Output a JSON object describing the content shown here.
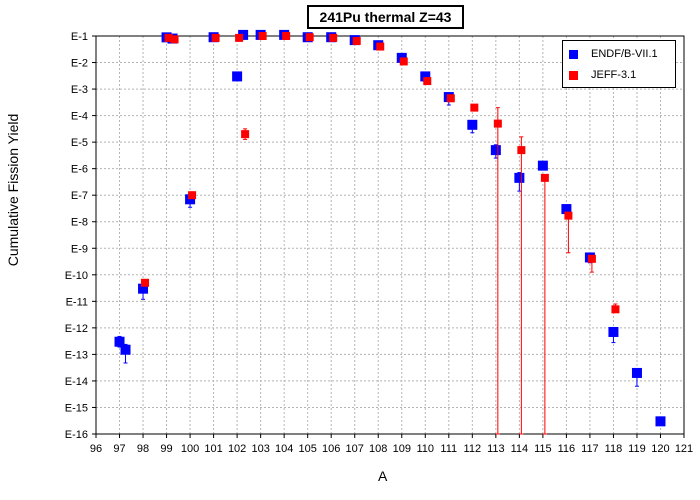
{
  "chart_data": {
    "type": "scatter",
    "title": "241Pu thermal Z=43",
    "xlabel": "A",
    "ylabel": "Cumulative Fission Yield",
    "xlim": [
      96,
      121
    ],
    "ylim_log10": [
      -16,
      -1
    ],
    "y_scale": "log",
    "x_ticks": [
      "96",
      "97",
      "98",
      "99",
      "100",
      "101",
      "102",
      "103",
      "104",
      "105",
      "106",
      "107",
      "108",
      "109",
      "110",
      "111",
      "112",
      "113",
      "114",
      "115",
      "116",
      "117",
      "118",
      "119",
      "120",
      "121"
    ],
    "y_ticks": [
      "E-1",
      "E-2",
      "E-3",
      "E-4",
      "E-5",
      "E-6",
      "E-7",
      "E-8",
      "E-9",
      "E-10",
      "E-11",
      "E-12",
      "E-13",
      "E-14",
      "E-15",
      "E-16"
    ],
    "legend_position": "top-right",
    "series": [
      {
        "name": "ENDF/B-VII.1",
        "color": "#0000ff",
        "points": [
          {
            "x": 97,
            "y": "3.0E-13",
            "err": [
              0.2,
              0.2
            ]
          },
          {
            "x": 97,
            "y": "1.5E-13",
            "err": [
              0.5,
              0.2
            ]
          },
          {
            "x": 98,
            "y": "3.0E-11",
            "err": [
              0.4,
              0.2
            ]
          },
          {
            "x": 99,
            "y": "8.9E-2",
            "err": [
              0,
              0
            ]
          },
          {
            "x": 99,
            "y": "8.0E-2",
            "err": [
              0,
              0
            ]
          },
          {
            "x": 100,
            "y": "7.0E-8",
            "err": [
              0.3,
              0.2
            ]
          },
          {
            "x": 101,
            "y": "9.0E-2",
            "err": [
              0,
              0
            ]
          },
          {
            "x": 102,
            "y": "3.0E-3",
            "err": [
              0,
              0
            ]
          },
          {
            "x": 102,
            "y": "1.1E-1",
            "err": [
              0,
              0
            ]
          },
          {
            "x": 103,
            "y": "1.1E-1",
            "err": [
              0,
              0
            ]
          },
          {
            "x": 104,
            "y": "1.1E-1",
            "err": [
              0,
              0
            ]
          },
          {
            "x": 105,
            "y": "9.0E-2",
            "err": [
              0,
              0
            ]
          },
          {
            "x": 106,
            "y": "9.0E-2",
            "err": [
              0,
              0
            ]
          },
          {
            "x": 107,
            "y": "7.0E-2",
            "err": [
              0,
              0
            ]
          },
          {
            "x": 108,
            "y": "4.5E-2",
            "err": [
              0,
              0
            ]
          },
          {
            "x": 109,
            "y": "1.5E-2",
            "err": [
              0,
              0
            ]
          },
          {
            "x": 110,
            "y": "3.0E-3",
            "err": [
              0.2,
              0.1
            ]
          },
          {
            "x": 111,
            "y": "5.0E-4",
            "err": [
              0.3,
              0.1
            ]
          },
          {
            "x": 112,
            "y": "4.5E-5",
            "err": [
              0.3,
              0.1
            ]
          },
          {
            "x": 113,
            "y": "5.0E-6",
            "err": [
              0.3,
              0.2
            ]
          },
          {
            "x": 114,
            "y": "4.5E-7",
            "err": [
              0.5,
              0.2
            ]
          },
          {
            "x": 115,
            "y": "1.3E-6",
            "err": [
              0,
              0
            ]
          },
          {
            "x": 116,
            "y": "3.0E-8",
            "err": [
              0,
              0
            ]
          },
          {
            "x": 117,
            "y": "4.5E-10",
            "err": [
              0.2,
              0.1
            ]
          },
          {
            "x": 118,
            "y": "7.0E-13",
            "err": [
              0.4,
              0.1
            ]
          },
          {
            "x": 119,
            "y": "2.0E-14",
            "err": [
              0.5,
              0.1
            ]
          },
          {
            "x": 120,
            "y": "3.0E-16",
            "err": [
              0,
              0
            ]
          }
        ]
      },
      {
        "name": "JEFF-3.1",
        "color": "#ff0000",
        "points": [
          {
            "x": 98,
            "y": "5.0E-11",
            "err": [
              0.1,
              0.1
            ]
          },
          {
            "x": 99,
            "y": "8.5E-2",
            "err": [
              0,
              0
            ]
          },
          {
            "x": 99,
            "y": "7.5E-2",
            "err": [
              0,
              0
            ]
          },
          {
            "x": 100,
            "y": "1.0E-7",
            "err": [
              0.1,
              0.1
            ]
          },
          {
            "x": 101,
            "y": "8.5E-2",
            "err": [
              0,
              0
            ]
          },
          {
            "x": 102,
            "y": "8.5E-2",
            "err": [
              0,
              0
            ]
          },
          {
            "x": 102,
            "y": "2.0E-5",
            "err": [
              0.2,
              0.2
            ]
          },
          {
            "x": 103,
            "y": "1.0E-1",
            "err": [
              0,
              0
            ]
          },
          {
            "x": 104,
            "y": "1.0E-1",
            "err": [
              0,
              0
            ]
          },
          {
            "x": 105,
            "y": "9.0E-2",
            "err": [
              0,
              0
            ]
          },
          {
            "x": 106,
            "y": "8.5E-2",
            "err": [
              0,
              0
            ]
          },
          {
            "x": 107,
            "y": "6.5E-2",
            "err": [
              0,
              0
            ]
          },
          {
            "x": 108,
            "y": "4.0E-2",
            "err": [
              0,
              0
            ]
          },
          {
            "x": 109,
            "y": "1.1E-2",
            "err": [
              0,
              0
            ]
          },
          {
            "x": 110,
            "y": "2.0E-3",
            "err": [
              0,
              0
            ]
          },
          {
            "x": 111,
            "y": "4.5E-4",
            "err": [
              0,
              0
            ]
          },
          {
            "x": 112,
            "y": "2.0E-4",
            "err": [
              0,
              0
            ]
          },
          {
            "x": 113,
            "y": "5.0E-5",
            "err": [
              13,
              0.6
            ]
          },
          {
            "x": 114,
            "y": "5.0E-6",
            "err": [
              12,
              0.5
            ]
          },
          {
            "x": 115,
            "y": "4.5E-7",
            "err": [
              11,
              0
            ]
          },
          {
            "x": 116,
            "y": "1.7E-8",
            "err": [
              1.4,
              0.1
            ]
          },
          {
            "x": 117,
            "y": "4.0E-10",
            "err": [
              0.5,
              0.1
            ]
          },
          {
            "x": 118,
            "y": "5.0E-12",
            "err": [
              0.1,
              0.2
            ]
          }
        ]
      }
    ]
  }
}
